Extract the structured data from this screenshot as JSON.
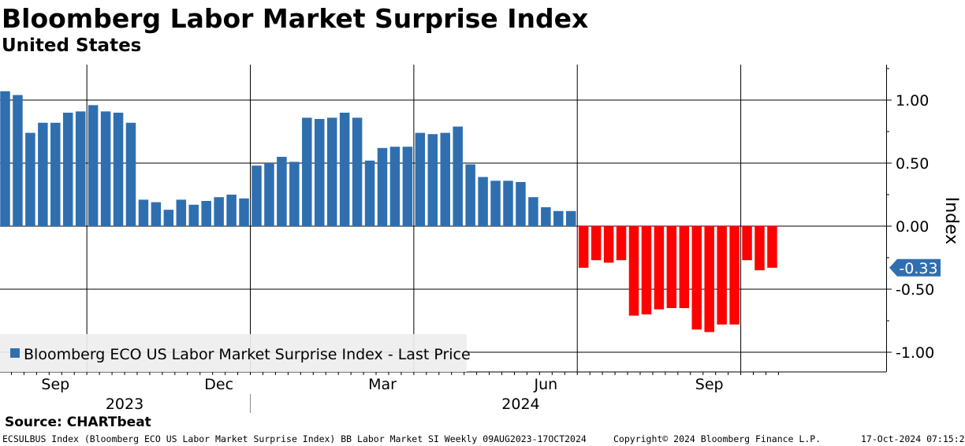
{
  "header": {
    "title": "Bloomberg Labor Market Surprise Index",
    "subtitle": "United States"
  },
  "source": "Source: CHARTbeat",
  "footer": {
    "left": "ECSULBUS Index (Bloomberg ECO US Labor Market Surprise Index) BB Labor Market SI  Weekly 09AUG2023-17OCT2024",
    "middle": "Copyright© 2024 Bloomberg Finance L.P.",
    "right": "17-Oct-2024 07:15:25"
  },
  "chart_data": {
    "type": "bar",
    "ylabel": "Index",
    "ylim": [
      -1.15,
      1.27
    ],
    "yticks": [
      1.0,
      0.5,
      0.0,
      -0.5,
      -1.0
    ],
    "ytick_labels": [
      "1.00",
      "0.50",
      "0.00",
      "-0.50",
      "-1.00"
    ],
    "x_month_labels": [
      {
        "label": "Sep",
        "week": 4
      },
      {
        "label": "Dec",
        "week": 17
      },
      {
        "label": "Mar",
        "week": 30
      },
      {
        "label": "Jun",
        "week": 43
      },
      {
        "label": "Sep",
        "week": 56
      }
    ],
    "x_year_labels": [
      {
        "label": "2023",
        "week": 9.5
      },
      {
        "label": "2024",
        "week": 41
      }
    ],
    "x_vgrid_weeks": [
      6.5,
      19.5,
      32.5,
      45.5,
      58.5
    ],
    "year_separator_week": 19.5,
    "last_value_label": "-0.33",
    "positive_color": "#2f6fb0",
    "negative_color": "#ff0000",
    "legend": {
      "label": "Bloomberg ECO US Labor Market Surprise Index - Last Price",
      "color": "#2f6fb0",
      "position": "bottom-left"
    },
    "grid": true,
    "series": [
      {
        "name": "Bloomberg ECO US Labor Market Surprise Index - Last Price",
        "values": [
          1.07,
          1.04,
          0.74,
          0.82,
          0.82,
          0.9,
          0.91,
          0.96,
          0.91,
          0.9,
          0.82,
          0.21,
          0.19,
          0.13,
          0.21,
          0.17,
          0.2,
          0.23,
          0.25,
          0.22,
          0.48,
          0.5,
          0.55,
          0.51,
          0.86,
          0.85,
          0.86,
          0.9,
          0.86,
          0.52,
          0.62,
          0.63,
          0.63,
          0.74,
          0.73,
          0.74,
          0.79,
          0.49,
          0.39,
          0.36,
          0.36,
          0.35,
          0.23,
          0.15,
          0.12,
          0.12,
          -0.33,
          -0.27,
          -0.29,
          -0.27,
          -0.71,
          -0.7,
          -0.66,
          -0.65,
          -0.65,
          -0.82,
          -0.84,
          -0.78,
          -0.78,
          -0.27,
          -0.35,
          -0.33
        ]
      }
    ]
  }
}
